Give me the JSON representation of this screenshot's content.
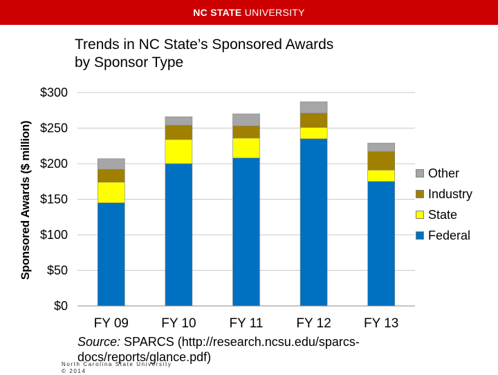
{
  "header": {
    "brand_bold": "NC STATE",
    "brand_rest": "UNIVERSITY",
    "color": "#cc0000"
  },
  "title_lines": [
    "Trends in NC State’s Sponsored Awards",
    "by Sponsor Type"
  ],
  "chart_data": {
    "type": "bar",
    "stacked": true,
    "categories": [
      "FY 09",
      "FY 10",
      "FY 11",
      "FY 12",
      "FY 13"
    ],
    "series": [
      {
        "name": "Federal",
        "color": "#0070c0",
        "values": [
          145,
          200,
          208,
          235,
          175
        ]
      },
      {
        "name": "State",
        "color": "#ffff00",
        "values": [
          29,
          34,
          28,
          16,
          16
        ]
      },
      {
        "name": "Industry",
        "color": "#a08000",
        "values": [
          18,
          20,
          17,
          20,
          26
        ]
      },
      {
        "name": "Other",
        "color": "#a6a6a6",
        "values": [
          15,
          12,
          17,
          16,
          12
        ]
      }
    ],
    "ylabel": "Sponsored Awards ($ million)",
    "xlabel": "",
    "ylim": [
      0,
      300
    ],
    "yticks": [
      0,
      50,
      100,
      150,
      200,
      250,
      300
    ],
    "ytick_labels": [
      "$0",
      "$50",
      "$100",
      "$150",
      "$200",
      "$250",
      "$300"
    ],
    "grid": true,
    "legend_position": "right",
    "legend_order": [
      "Other",
      "Industry",
      "State",
      "Federal"
    ]
  },
  "source": {
    "prefix": "Source:",
    "text": " SPARCS (http://research.ncsu.edu/sparcs-docs/reports/glance.pdf)"
  },
  "footer": {
    "line1": "North Carolina State University",
    "line2": "© 2014"
  }
}
